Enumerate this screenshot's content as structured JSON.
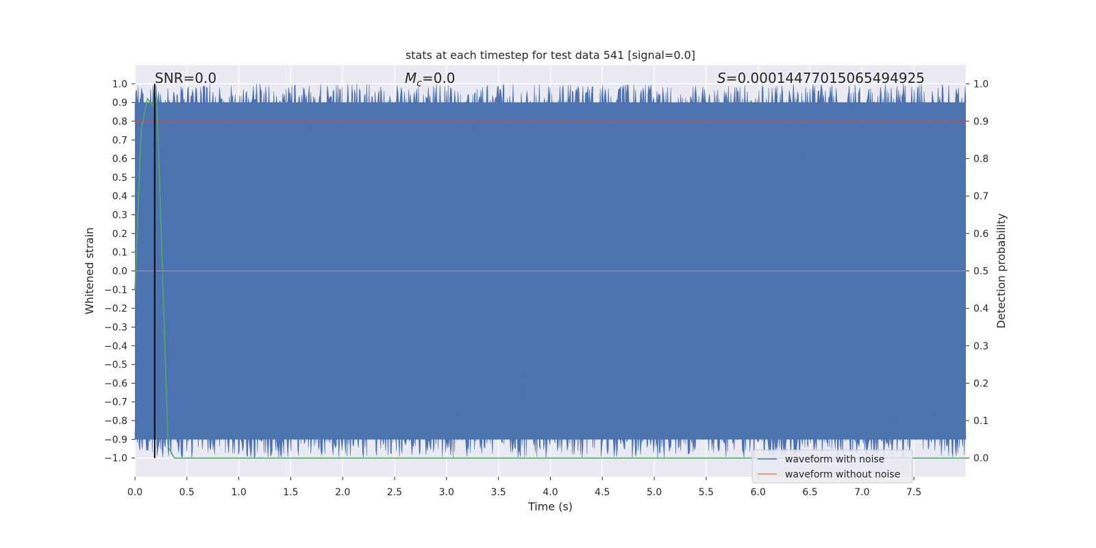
{
  "chart_data": {
    "type": "line",
    "title": "stats at each timestep for test data 541 [signal=0.0]",
    "xlabel": "Time (s)",
    "ylabel": "Whitened strain",
    "ylabel_right": "Detection probability",
    "xlim": [
      0.0,
      8.0
    ],
    "ylim": [
      -1.1,
      1.1
    ],
    "ylim_right": [
      -0.05,
      1.05
    ],
    "x_ticks": [
      "0.0",
      "0.5",
      "1.0",
      "1.5",
      "2.0",
      "2.5",
      "3.0",
      "3.5",
      "4.0",
      "4.5",
      "5.0",
      "5.5",
      "6.0",
      "6.5",
      "7.0",
      "7.5"
    ],
    "y_ticks": [
      "1.0",
      "0.9",
      "0.8",
      "0.7",
      "0.6",
      "0.5",
      "0.4",
      "0.3",
      "0.2",
      "0.1",
      "0.0",
      "−0.1",
      "−0.2",
      "−0.3",
      "−0.4",
      "−0.5",
      "−0.6",
      "−0.7",
      "−0.8",
      "−0.9",
      "−1.0"
    ],
    "y_ticks_right": [
      "1.0",
      "0.9",
      "0.8",
      "0.7",
      "0.6",
      "0.5",
      "0.4",
      "0.3",
      "0.2",
      "0.1",
      "0.0"
    ],
    "annotations": {
      "snr": "SNR=0.0",
      "mc_symbol": "M",
      "mc_sub": "c",
      "mc_value": "=0.0",
      "s_symbol": "S",
      "s_value": "=0.00014477015065494925"
    },
    "series": [
      {
        "name": "waveform with noise",
        "color": "#4c72b0",
        "description": "whitened noise filling range -1.0 to 1.0"
      },
      {
        "name": "waveform without noise",
        "color": "#dd8452",
        "value": 0.0
      },
      {
        "name": "detection threshold",
        "color": "#c44e52",
        "value": 0.9,
        "axis": "right"
      },
      {
        "name": "detection probability",
        "color": "#55a868",
        "axis": "right",
        "x": [
          0.0,
          0.06,
          0.12,
          0.18,
          0.21,
          0.32,
          0.38,
          8.0
        ],
        "y": [
          0.45,
          0.88,
          0.96,
          0.94,
          0.97,
          0.03,
          0.0,
          0.0
        ]
      },
      {
        "name": "event marker",
        "color": "#000000",
        "x": 0.19
      }
    ],
    "legend": {
      "position": "lower-right",
      "entries": [
        "waveform with noise",
        "waveform without noise"
      ]
    },
    "grid": true,
    "colors": {
      "background": "#eaeaf2",
      "grid": "#ffffff",
      "text": "#262626"
    }
  }
}
